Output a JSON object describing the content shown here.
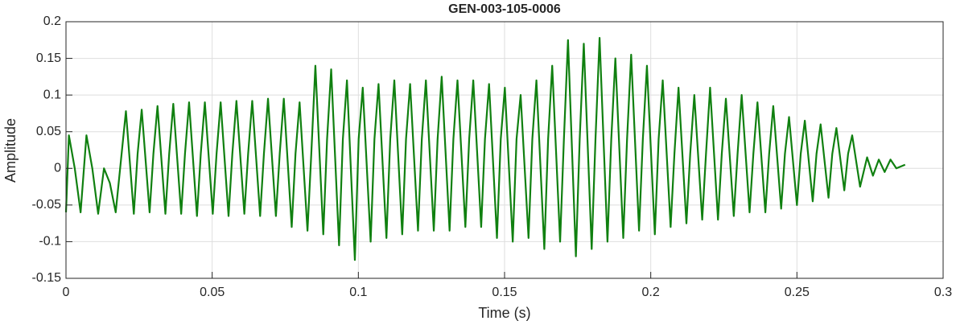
{
  "chart_data": {
    "type": "line",
    "title": "GEN-003-105-0006",
    "x_label": "Time (s)",
    "y_label": "Amplitude",
    "xlim": [
      0,
      0.3
    ],
    "ylim": [
      -0.15,
      0.2
    ],
    "xticks": [
      0,
      0.05,
      0.1,
      0.15,
      0.2,
      0.25,
      0.3
    ],
    "yticks": [
      -0.15,
      -0.1,
      -0.05,
      0,
      0.05,
      0.1,
      0.15,
      0.2
    ],
    "grid": true,
    "x": [
      0,
      0.001,
      0.003,
      0.005,
      0.007,
      0.009,
      0.011,
      0.013,
      0.015,
      0.017,
      0.0205,
      0.0232,
      0.0245,
      0.0259,
      0.0286,
      0.0299,
      0.0313,
      0.034,
      0.0353,
      0.0367,
      0.0394,
      0.0407,
      0.0421,
      0.0448,
      0.0461,
      0.0475,
      0.0502,
      0.0515,
      0.0529,
      0.0556,
      0.0569,
      0.0583,
      0.061,
      0.0623,
      0.0637,
      0.0664,
      0.0677,
      0.0691,
      0.0718,
      0.0731,
      0.0745,
      0.0772,
      0.0785,
      0.0799,
      0.0826,
      0.0839,
      0.0853,
      0.088,
      0.0893,
      0.0907,
      0.0934,
      0.0947,
      0.0961,
      0.0988,
      0.1001,
      0.1015,
      0.1042,
      0.1055,
      0.1069,
      0.1096,
      0.1109,
      0.1123,
      0.115,
      0.1163,
      0.1177,
      0.1204,
      0.1217,
      0.1231,
      0.1258,
      0.1271,
      0.1285,
      0.1312,
      0.1325,
      0.1339,
      0.1366,
      0.1379,
      0.1393,
      0.142,
      0.1433,
      0.1447,
      0.1474,
      0.1487,
      0.1501,
      0.1528,
      0.1541,
      0.1555,
      0.1582,
      0.1595,
      0.1609,
      0.1636,
      0.1649,
      0.1663,
      0.169,
      0.1703,
      0.1717,
      0.1744,
      0.1757,
      0.1771,
      0.1798,
      0.1811,
      0.1825,
      0.1852,
      0.1865,
      0.1879,
      0.1906,
      0.1919,
      0.1933,
      0.196,
      0.1973,
      0.1987,
      0.2014,
      0.2027,
      0.2041,
      0.2068,
      0.2081,
      0.2095,
      0.2122,
      0.2135,
      0.2149,
      0.2176,
      0.2189,
      0.2203,
      0.223,
      0.2243,
      0.2257,
      0.2284,
      0.2297,
      0.2311,
      0.2338,
      0.2351,
      0.2365,
      0.2392,
      0.2405,
      0.2419,
      0.2446,
      0.2459,
      0.2473,
      0.25,
      0.2513,
      0.2527,
      0.2554,
      0.2567,
      0.2581,
      0.2608,
      0.2621,
      0.2635,
      0.2662,
      0.2675,
      0.2689,
      0.2716,
      0.274,
      0.276,
      0.278,
      0.28,
      0.282,
      0.284,
      0.287
    ],
    "series": [
      {
        "name": "Amplitude",
        "color": "#108010",
        "values": [
          -0.06,
          0.045,
          0.0,
          -0.06,
          0.045,
          0.0,
          -0.062,
          0.0,
          -0.02,
          -0.06,
          0.078,
          -0.062,
          0.02,
          0.08,
          -0.06,
          0.02,
          0.085,
          -0.062,
          0.02,
          0.088,
          -0.062,
          0.02,
          0.09,
          -0.065,
          0.02,
          0.09,
          -0.062,
          0.02,
          0.09,
          -0.065,
          0.02,
          0.092,
          -0.062,
          0.02,
          0.092,
          -0.065,
          0.02,
          0.095,
          -0.065,
          0.02,
          0.095,
          -0.08,
          0.02,
          0.09,
          -0.085,
          0.02,
          0.14,
          -0.09,
          0.04,
          0.135,
          -0.105,
          0.04,
          0.12,
          -0.125,
          0.04,
          0.11,
          -0.1,
          0.04,
          0.115,
          -0.095,
          0.04,
          0.12,
          -0.09,
          0.04,
          0.115,
          -0.085,
          0.04,
          0.12,
          -0.085,
          0.04,
          0.125,
          -0.085,
          0.04,
          0.12,
          -0.08,
          0.04,
          0.12,
          -0.08,
          0.04,
          0.115,
          -0.095,
          0.04,
          0.11,
          -0.1,
          0.04,
          0.1,
          -0.095,
          0.04,
          0.12,
          -0.11,
          0.04,
          0.14,
          -0.1,
          0.04,
          0.175,
          -0.12,
          0.04,
          0.17,
          -0.11,
          0.04,
          0.178,
          -0.1,
          0.04,
          0.15,
          -0.095,
          0.04,
          0.155,
          -0.085,
          0.04,
          0.14,
          -0.09,
          0.04,
          0.12,
          -0.08,
          0.02,
          0.11,
          -0.075,
          0.02,
          0.1,
          -0.07,
          0.02,
          0.11,
          -0.07,
          0.02,
          0.095,
          -0.065,
          0.02,
          0.1,
          -0.06,
          0.02,
          0.09,
          -0.06,
          0.02,
          0.085,
          -0.055,
          0.02,
          0.07,
          -0.05,
          0.02,
          0.065,
          -0.045,
          0.02,
          0.06,
          -0.04,
          0.02,
          0.055,
          -0.03,
          0.02,
          0.045,
          -0.025,
          0.015,
          -0.01,
          0.012,
          -0.005,
          0.012,
          0.0,
          0.005
        ]
      }
    ]
  }
}
